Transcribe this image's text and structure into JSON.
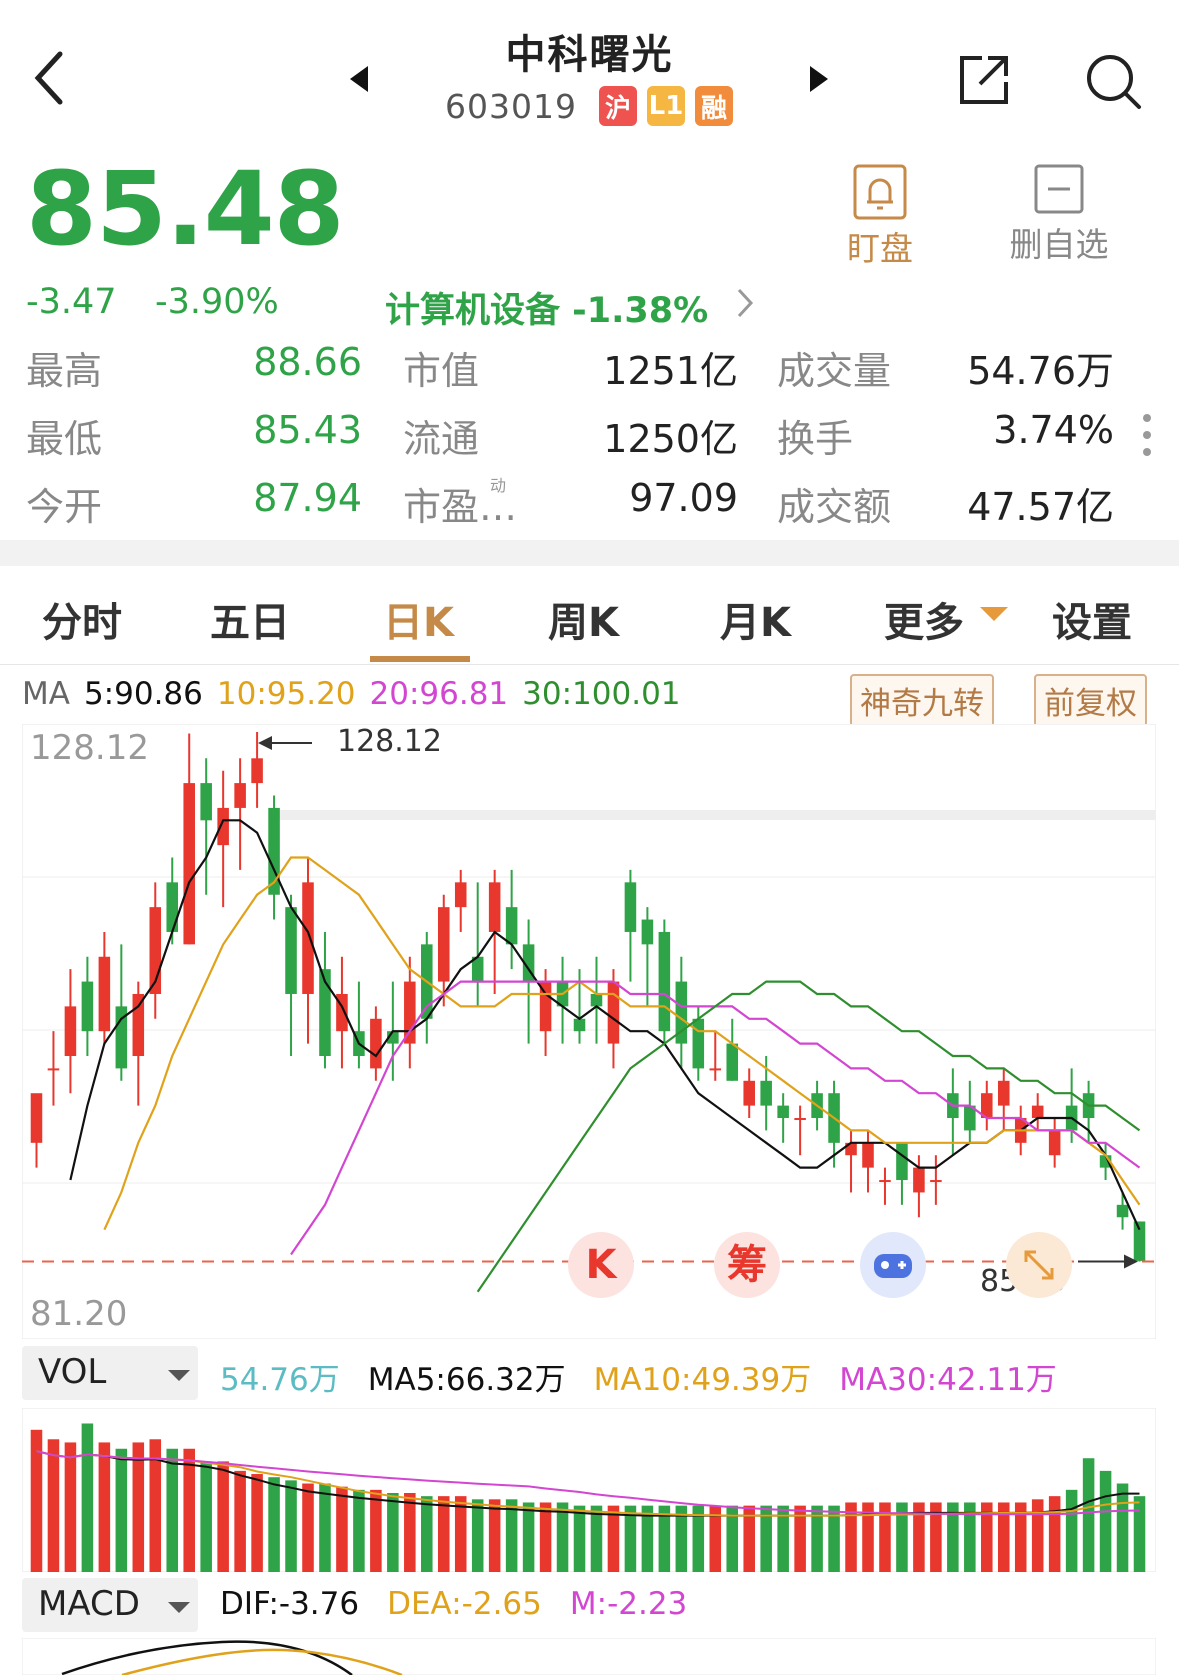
{
  "header": {
    "title": "中科曙光",
    "code": "603019",
    "badges": [
      {
        "text": "沪",
        "color": "#ef5350"
      },
      {
        "text": "L1",
        "color": "#f5b642"
      },
      {
        "text": "融",
        "color": "#f08c3c"
      }
    ],
    "alert_label": "盯盘",
    "remove_label": "删自选"
  },
  "quote": {
    "price": "85.48",
    "change": "-3.47",
    "change_pct": "-3.90%",
    "industry": "计算机设备 -1.38%",
    "colors": {
      "down": "#2fa347",
      "up": "#e8372d"
    }
  },
  "stats": [
    [
      {
        "label": "最高",
        "value": "88.66"
      },
      {
        "label": "市值",
        "value": "1251亿"
      },
      {
        "label": "成交量",
        "value": "54.76万"
      }
    ],
    [
      {
        "label": "最低",
        "value": "85.43"
      },
      {
        "label": "流通",
        "value": "1250亿"
      },
      {
        "label": "换手",
        "value": "3.74%"
      }
    ],
    [
      {
        "label": "今开",
        "value": "87.94"
      },
      {
        "label": "市盈…",
        "value": "97.09",
        "sup": "动"
      },
      {
        "label": "成交额",
        "value": "47.57亿"
      }
    ]
  ],
  "tabs": [
    "分时",
    "五日",
    "日K",
    "周K",
    "月K",
    "更多",
    "设置"
  ],
  "active_tab": "日K",
  "ma_bar": {
    "label": "MA",
    "ma5": "5:90.86",
    "ma10": "10:95.20",
    "ma20": "20:96.81",
    "ma30": "30:100.01",
    "btn1": "神奇九转",
    "btn2": "前复权"
  },
  "chart_labels": {
    "y_max": "128.12",
    "y_min": "81.20",
    "high_marker": "128.12",
    "low_marker": "85.43",
    "float_k": "K",
    "float_chip": "筹"
  },
  "vol_bar": {
    "label": "VOL",
    "vol": "54.76万",
    "ma5": "MA5:66.32万",
    "ma10": "MA10:49.39万",
    "ma30": "MA30:42.11万"
  },
  "macd_bar": {
    "label": "MACD",
    "dif": "DIF:-3.76",
    "dea": "DEA:-2.65",
    "m": "M:-2.23"
  },
  "chart_data": {
    "type": "candlestick",
    "y_range": [
      81.2,
      128.12
    ],
    "candles": [
      [
        95,
        99,
        96,
        93
      ],
      [
        101,
        101,
        104,
        98
      ],
      [
        102,
        106,
        109,
        99
      ],
      [
        108,
        104,
        110,
        102
      ],
      [
        104,
        110,
        112,
        103
      ],
      [
        106,
        101,
        111,
        100
      ],
      [
        102,
        107,
        108,
        98
      ],
      [
        107,
        114,
        116,
        105
      ],
      [
        116,
        112,
        118,
        111
      ],
      [
        111,
        124,
        128,
        111
      ],
      [
        124,
        121,
        126,
        115
      ],
      [
        119,
        122,
        125,
        114
      ],
      [
        122,
        124,
        126,
        117
      ],
      [
        124,
        126,
        128.12,
        122
      ],
      [
        122,
        115,
        123,
        113
      ],
      [
        114,
        107,
        115,
        102
      ],
      [
        107,
        116,
        118,
        103
      ],
      [
        109,
        102,
        112,
        101
      ],
      [
        104,
        107,
        110,
        101
      ],
      [
        104,
        102,
        108,
        101
      ],
      [
        101,
        105,
        106,
        100
      ],
      [
        104,
        103,
        108,
        100
      ],
      [
        103,
        108,
        110,
        101
      ],
      [
        111,
        105,
        112,
        103
      ],
      [
        108,
        114,
        115,
        106
      ],
      [
        114,
        116,
        117,
        112
      ],
      [
        110,
        108,
        116,
        106
      ],
      [
        112,
        116,
        117,
        107
      ],
      [
        114,
        111,
        117,
        109
      ],
      [
        111,
        108,
        113,
        103
      ],
      [
        104,
        108,
        109,
        102
      ],
      [
        108,
        106,
        110,
        103
      ],
      [
        105,
        104,
        109,
        103
      ],
      [
        107,
        106,
        110,
        103
      ],
      [
        103,
        108,
        109,
        101
      ],
      [
        116,
        112,
        117,
        108
      ],
      [
        113,
        111,
        114,
        106
      ],
      [
        112,
        104,
        113,
        103
      ],
      [
        108,
        103,
        110,
        101
      ],
      [
        105,
        101,
        106,
        100
      ],
      [
        101,
        101,
        104,
        100
      ],
      [
        103,
        100,
        105,
        100
      ],
      [
        98,
        100,
        101,
        97
      ],
      [
        100,
        98,
        102,
        96
      ],
      [
        98,
        97,
        99,
        95
      ],
      [
        97,
        97,
        98,
        94
      ],
      [
        99,
        97,
        100,
        96
      ],
      [
        99,
        95,
        100,
        93
      ],
      [
        94,
        95,
        96,
        91
      ],
      [
        93,
        95,
        96,
        91
      ],
      [
        92,
        92,
        93,
        90
      ],
      [
        95,
        92,
        95,
        90
      ],
      [
        91,
        93,
        94,
        89
      ],
      [
        92,
        92,
        94,
        90
      ],
      [
        99,
        97,
        101,
        94
      ],
      [
        98,
        96,
        100,
        95
      ],
      [
        97,
        99,
        100,
        96
      ],
      [
        98,
        100,
        101,
        96
      ],
      [
        95,
        97,
        98,
        94
      ],
      [
        97,
        98,
        99,
        96
      ],
      [
        94,
        96,
        97,
        93
      ],
      [
        98,
        96,
        101,
        95
      ],
      [
        99,
        97,
        100,
        95
      ],
      [
        94,
        93,
        95,
        92
      ],
      [
        90,
        89,
        91,
        88
      ],
      [
        88.66,
        85.48,
        88.66,
        85.43
      ]
    ],
    "lines": [
      {
        "name": "MA5",
        "color": "#111111",
        "values": [
          92,
          98,
          103,
          105,
          106,
          108,
          112,
          116,
          118,
          121,
          121,
          120,
          117,
          114,
          112,
          108,
          106,
          103,
          102,
          104,
          104,
          105,
          107,
          109,
          110,
          112,
          111,
          109,
          107,
          106,
          105,
          106,
          105,
          104,
          104,
          103,
          101,
          99,
          98,
          97,
          96,
          95,
          94,
          93,
          93,
          94,
          95,
          95,
          95,
          94,
          93,
          93,
          94,
          95,
          95,
          96,
          96,
          97,
          97,
          97,
          96,
          94,
          91,
          88
        ]
      },
      {
        "name": "MA10",
        "color": "#e0a21a",
        "values": [
          88,
          91,
          95,
          98,
          102,
          105,
          108,
          111,
          113,
          115,
          116,
          118,
          118,
          117,
          116,
          115,
          113,
          111,
          109,
          108,
          107,
          106,
          106,
          106,
          107,
          107,
          107,
          107,
          108,
          107,
          107,
          106,
          106,
          106,
          105,
          104,
          104,
          103,
          102,
          101,
          100,
          99,
          98,
          97,
          96,
          96,
          95,
          95,
          95,
          95,
          95,
          95,
          95,
          96,
          96,
          96,
          96,
          96,
          95,
          94,
          92,
          90
        ]
      },
      {
        "name": "MA20",
        "color": "#d246d2",
        "values": [
          86,
          88,
          90,
          93,
          96,
          99,
          102,
          104,
          106,
          107,
          108,
          108,
          108,
          108,
          108,
          108,
          108,
          108,
          108,
          108,
          107,
          107,
          107,
          106,
          106,
          106,
          106,
          105,
          105,
          104,
          103,
          103,
          102,
          101,
          101,
          100,
          100,
          99,
          99,
          98,
          98,
          97,
          97,
          97,
          96,
          96,
          96,
          95,
          95,
          94,
          93
        ]
      },
      {
        "name": "MA30",
        "color": "#2f8f2f",
        "values": [
          83,
          85,
          87,
          89,
          91,
          93,
          95,
          97,
          99,
          101,
          102,
          103,
          104,
          105,
          106,
          107,
          107,
          108,
          108,
          108,
          107,
          107,
          106,
          106,
          105,
          104,
          104,
          103,
          102,
          102,
          101,
          101,
          100,
          100,
          99,
          99,
          98,
          98,
          97,
          96
        ]
      }
    ],
    "volume": [
      45,
      42,
      41,
      47,
      41,
      39,
      41,
      42,
      39,
      39,
      35,
      35,
      32,
      31,
      30,
      29,
      28,
      28,
      27,
      26,
      26,
      25,
      25,
      24,
      24,
      24,
      23,
      23,
      23,
      22,
      22,
      22,
      21,
      21,
      21,
      21,
      21,
      21,
      21,
      21,
      21,
      21,
      21,
      21,
      21,
      21,
      21,
      21,
      22,
      22,
      22,
      22,
      22,
      22,
      22,
      22,
      22,
      22,
      22,
      23,
      24,
      26,
      36,
      32,
      28,
      24
    ]
  }
}
